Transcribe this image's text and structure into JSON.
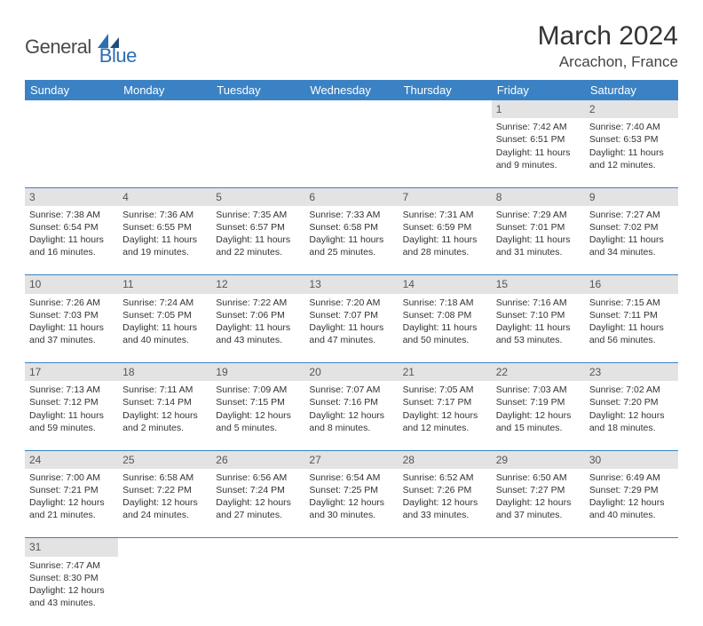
{
  "logo": {
    "part1": "General",
    "part2": "Blue"
  },
  "title": "March 2024",
  "location": "Arcachon, France",
  "colors": {
    "header_bg": "#3b82c4",
    "header_text": "#ffffff",
    "daynum_bg": "#e3e3e3",
    "row_divider": "#3b82c4",
    "logo_gray": "#4a4a4a",
    "logo_blue": "#2b6fb0"
  },
  "weekdays": [
    "Sunday",
    "Monday",
    "Tuesday",
    "Wednesday",
    "Thursday",
    "Friday",
    "Saturday"
  ],
  "weeks": [
    [
      null,
      null,
      null,
      null,
      null,
      {
        "n": "1",
        "sunrise": "7:42 AM",
        "sunset": "6:51 PM",
        "day_h": "11",
        "day_m": "9"
      },
      {
        "n": "2",
        "sunrise": "7:40 AM",
        "sunset": "6:53 PM",
        "day_h": "11",
        "day_m": "12"
      }
    ],
    [
      {
        "n": "3",
        "sunrise": "7:38 AM",
        "sunset": "6:54 PM",
        "day_h": "11",
        "day_m": "16"
      },
      {
        "n": "4",
        "sunrise": "7:36 AM",
        "sunset": "6:55 PM",
        "day_h": "11",
        "day_m": "19"
      },
      {
        "n": "5",
        "sunrise": "7:35 AM",
        "sunset": "6:57 PM",
        "day_h": "11",
        "day_m": "22"
      },
      {
        "n": "6",
        "sunrise": "7:33 AM",
        "sunset": "6:58 PM",
        "day_h": "11",
        "day_m": "25"
      },
      {
        "n": "7",
        "sunrise": "7:31 AM",
        "sunset": "6:59 PM",
        "day_h": "11",
        "day_m": "28"
      },
      {
        "n": "8",
        "sunrise": "7:29 AM",
        "sunset": "7:01 PM",
        "day_h": "11",
        "day_m": "31"
      },
      {
        "n": "9",
        "sunrise": "7:27 AM",
        "sunset": "7:02 PM",
        "day_h": "11",
        "day_m": "34"
      }
    ],
    [
      {
        "n": "10",
        "sunrise": "7:26 AM",
        "sunset": "7:03 PM",
        "day_h": "11",
        "day_m": "37"
      },
      {
        "n": "11",
        "sunrise": "7:24 AM",
        "sunset": "7:05 PM",
        "day_h": "11",
        "day_m": "40"
      },
      {
        "n": "12",
        "sunrise": "7:22 AM",
        "sunset": "7:06 PM",
        "day_h": "11",
        "day_m": "43"
      },
      {
        "n": "13",
        "sunrise": "7:20 AM",
        "sunset": "7:07 PM",
        "day_h": "11",
        "day_m": "47"
      },
      {
        "n": "14",
        "sunrise": "7:18 AM",
        "sunset": "7:08 PM",
        "day_h": "11",
        "day_m": "50"
      },
      {
        "n": "15",
        "sunrise": "7:16 AM",
        "sunset": "7:10 PM",
        "day_h": "11",
        "day_m": "53"
      },
      {
        "n": "16",
        "sunrise": "7:15 AM",
        "sunset": "7:11 PM",
        "day_h": "11",
        "day_m": "56"
      }
    ],
    [
      {
        "n": "17",
        "sunrise": "7:13 AM",
        "sunset": "7:12 PM",
        "day_h": "11",
        "day_m": "59"
      },
      {
        "n": "18",
        "sunrise": "7:11 AM",
        "sunset": "7:14 PM",
        "day_h": "12",
        "day_m": "2"
      },
      {
        "n": "19",
        "sunrise": "7:09 AM",
        "sunset": "7:15 PM",
        "day_h": "12",
        "day_m": "5"
      },
      {
        "n": "20",
        "sunrise": "7:07 AM",
        "sunset": "7:16 PM",
        "day_h": "12",
        "day_m": "8"
      },
      {
        "n": "21",
        "sunrise": "7:05 AM",
        "sunset": "7:17 PM",
        "day_h": "12",
        "day_m": "12"
      },
      {
        "n": "22",
        "sunrise": "7:03 AM",
        "sunset": "7:19 PM",
        "day_h": "12",
        "day_m": "15"
      },
      {
        "n": "23",
        "sunrise": "7:02 AM",
        "sunset": "7:20 PM",
        "day_h": "12",
        "day_m": "18"
      }
    ],
    [
      {
        "n": "24",
        "sunrise": "7:00 AM",
        "sunset": "7:21 PM",
        "day_h": "12",
        "day_m": "21"
      },
      {
        "n": "25",
        "sunrise": "6:58 AM",
        "sunset": "7:22 PM",
        "day_h": "12",
        "day_m": "24"
      },
      {
        "n": "26",
        "sunrise": "6:56 AM",
        "sunset": "7:24 PM",
        "day_h": "12",
        "day_m": "27"
      },
      {
        "n": "27",
        "sunrise": "6:54 AM",
        "sunset": "7:25 PM",
        "day_h": "12",
        "day_m": "30"
      },
      {
        "n": "28",
        "sunrise": "6:52 AM",
        "sunset": "7:26 PM",
        "day_h": "12",
        "day_m": "33"
      },
      {
        "n": "29",
        "sunrise": "6:50 AM",
        "sunset": "7:27 PM",
        "day_h": "12",
        "day_m": "37"
      },
      {
        "n": "30",
        "sunrise": "6:49 AM",
        "sunset": "7:29 PM",
        "day_h": "12",
        "day_m": "40"
      }
    ],
    [
      {
        "n": "31",
        "sunrise": "7:47 AM",
        "sunset": "8:30 PM",
        "day_h": "12",
        "day_m": "43"
      },
      null,
      null,
      null,
      null,
      null,
      null
    ]
  ],
  "labels": {
    "sunrise": "Sunrise:",
    "sunset": "Sunset:",
    "daylight": "Daylight:",
    "hours": "hours",
    "and": "and",
    "minutes": "minutes."
  }
}
